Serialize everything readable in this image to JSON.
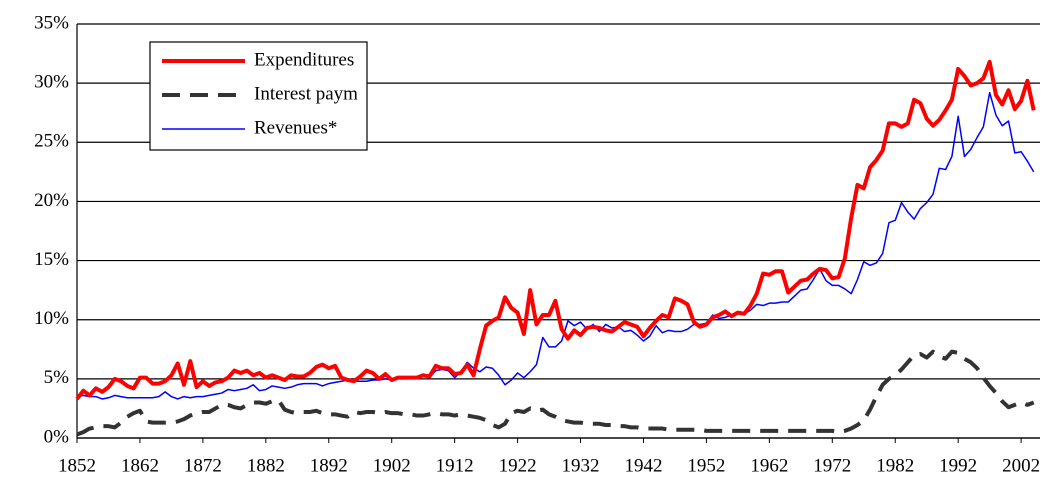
{
  "chart_data": {
    "type": "line",
    "x": [
      1852,
      1853,
      1854,
      1855,
      1856,
      1857,
      1858,
      1859,
      1860,
      1861,
      1862,
      1863,
      1864,
      1865,
      1866,
      1867,
      1868,
      1869,
      1870,
      1871,
      1872,
      1873,
      1874,
      1875,
      1876,
      1877,
      1878,
      1879,
      1880,
      1881,
      1882,
      1883,
      1884,
      1885,
      1886,
      1887,
      1888,
      1889,
      1890,
      1891,
      1892,
      1893,
      1894,
      1895,
      1896,
      1897,
      1898,
      1899,
      1900,
      1901,
      1902,
      1903,
      1904,
      1905,
      1906,
      1907,
      1908,
      1909,
      1910,
      1911,
      1912,
      1913,
      1914,
      1915,
      1916,
      1917,
      1918,
      1919,
      1920,
      1921,
      1922,
      1923,
      1924,
      1925,
      1926,
      1927,
      1928,
      1929,
      1930,
      1931,
      1932,
      1933,
      1934,
      1935,
      1936,
      1937,
      1938,
      1939,
      1940,
      1941,
      1942,
      1943,
      1944,
      1945,
      1946,
      1947,
      1948,
      1949,
      1950,
      1951,
      1952,
      1953,
      1954,
      1955,
      1956,
      1957,
      1958,
      1959,
      1960,
      1961,
      1962,
      1963,
      1964,
      1965,
      1966,
      1967,
      1968,
      1969,
      1970,
      1971,
      1972,
      1973,
      1974,
      1975,
      1976,
      1977,
      1978,
      1979,
      1980,
      1981,
      1982,
      1983,
      1984,
      1985,
      1986,
      1987,
      1988,
      1989,
      1990,
      1991,
      1992,
      1993,
      1994,
      1995,
      1996,
      1997,
      1998,
      1999,
      2000,
      2001,
      2002,
      2003,
      2004
    ],
    "series": [
      {
        "name": "Expenditures",
        "color": "#ff0000",
        "linewidth": 4,
        "linestyle": "solid",
        "values": [
          3.3,
          4.0,
          3.6,
          4.2,
          3.9,
          4.3,
          5.0,
          4.8,
          4.4,
          4.2,
          5.1,
          5.1,
          4.6,
          4.6,
          4.8,
          5.3,
          6.3,
          4.5,
          6.5,
          4.3,
          4.8,
          4.4,
          4.7,
          4.8,
          5.1,
          5.7,
          5.5,
          5.7,
          5.3,
          5.5,
          5.1,
          5.3,
          5.1,
          4.9,
          5.3,
          5.2,
          5.2,
          5.5,
          6.0,
          6.2,
          5.9,
          6.1,
          5.1,
          4.9,
          4.8,
          5.2,
          5.7,
          5.5,
          5.0,
          5.4,
          4.9,
          5.1,
          5.1,
          5.1,
          5.1,
          5.3,
          5.2,
          6.1,
          5.9,
          5.9,
          5.4,
          5.5,
          6.2,
          5.3,
          7.5,
          9.5,
          9.9,
          10.2,
          11.9,
          11.0,
          10.6,
          8.8,
          12.5,
          9.6,
          10.4,
          10.4,
          11.6,
          9.2,
          8.4,
          9.1,
          8.7,
          9.3,
          9.4,
          9.3,
          9.1,
          9.0,
          9.4,
          9.8,
          9.6,
          9.4,
          8.6,
          9.3,
          9.9,
          10.4,
          10.2,
          11.8,
          11.6,
          11.3,
          9.8,
          9.4,
          9.6,
          10.2,
          10.4,
          10.7,
          10.3,
          10.6,
          10.5,
          11.2,
          12.2,
          13.9,
          13.8,
          14.1,
          14.1,
          12.3,
          12.8,
          13.3,
          13.4,
          13.9,
          14.3,
          14.2,
          13.5,
          13.6,
          15.2,
          18.6,
          21.4,
          21.1,
          22.9,
          23.5,
          24.3,
          26.6,
          26.6,
          26.3,
          26.6,
          28.6,
          28.3,
          27.0,
          26.4,
          26.9,
          27.7,
          28.6,
          31.2,
          30.6,
          29.8,
          30.0,
          30.4,
          31.8,
          29.0,
          28.2,
          29.4,
          27.8,
          28.5,
          30.2,
          27.7
        ]
      },
      {
        "name": "Interest paym",
        "color": "#333333",
        "linewidth": 4,
        "linestyle": "dashed",
        "values": [
          0.3,
          0.5,
          0.8,
          0.9,
          1.0,
          1.0,
          0.9,
          1.3,
          1.8,
          2.1,
          2.3,
          1.4,
          1.3,
          1.3,
          1.3,
          1.3,
          1.4,
          1.6,
          1.9,
          2.1,
          2.2,
          2.2,
          2.5,
          2.8,
          2.8,
          2.6,
          2.5,
          2.8,
          3.0,
          3.0,
          2.9,
          3.1,
          3.2,
          2.4,
          2.2,
          2.1,
          2.2,
          2.2,
          2.3,
          2.1,
          2.0,
          2.0,
          1.9,
          1.8,
          2.2,
          2.1,
          2.2,
          2.2,
          2.1,
          2.2,
          2.1,
          2.1,
          2.0,
          2.0,
          1.9,
          1.9,
          2.0,
          2.1,
          2.0,
          2.0,
          1.9,
          2.0,
          1.9,
          1.8,
          1.7,
          1.5,
          1.1,
          0.9,
          1.2,
          2.1,
          2.3,
          2.2,
          2.5,
          2.3,
          2.4,
          2.0,
          1.8,
          1.5,
          1.4,
          1.3,
          1.3,
          1.2,
          1.2,
          1.2,
          1.1,
          1.1,
          1.0,
          1.0,
          0.9,
          0.9,
          0.8,
          0.8,
          0.8,
          0.8,
          0.7,
          0.7,
          0.7,
          0.7,
          0.7,
          0.7,
          0.6,
          0.6,
          0.6,
          0.6,
          0.6,
          0.6,
          0.6,
          0.6,
          0.6,
          0.6,
          0.6,
          0.6,
          0.6,
          0.6,
          0.6,
          0.6,
          0.6,
          0.6,
          0.6,
          0.6,
          0.6,
          0.5,
          0.6,
          0.8,
          1.1,
          1.5,
          2.4,
          3.5,
          4.5,
          5.0,
          5.3,
          5.8,
          6.4,
          7.0,
          7.1,
          6.8,
          7.3,
          6.9,
          6.7,
          7.3,
          7.2,
          6.7,
          6.4,
          5.9,
          5.1,
          4.4,
          3.8,
          3.1,
          2.6,
          2.8,
          3.0,
          2.8,
          3.0
        ]
      },
      {
        "name": "Revenues*",
        "color": "#0000ff",
        "linewidth": 1.5,
        "linestyle": "solid",
        "values": [
          3.5,
          3.6,
          3.5,
          3.5,
          3.3,
          3.4,
          3.6,
          3.5,
          3.4,
          3.4,
          3.4,
          3.4,
          3.4,
          3.5,
          3.9,
          3.5,
          3.3,
          3.5,
          3.4,
          3.5,
          3.5,
          3.6,
          3.7,
          3.8,
          4.1,
          4.0,
          4.1,
          4.2,
          4.5,
          4.0,
          4.1,
          4.4,
          4.3,
          4.2,
          4.3,
          4.5,
          4.6,
          4.6,
          4.6,
          4.4,
          4.6,
          4.7,
          4.8,
          4.9,
          4.8,
          4.8,
          4.8,
          4.9,
          4.9,
          5.0,
          4.9,
          5.0,
          5.0,
          5.1,
          5.1,
          5.3,
          5.1,
          5.7,
          5.8,
          5.7,
          5.1,
          5.6,
          6.4,
          5.9,
          5.6,
          6.0,
          5.9,
          5.3,
          4.5,
          4.9,
          5.5,
          5.1,
          5.6,
          6.2,
          8.5,
          7.7,
          7.7,
          8.2,
          9.9,
          9.5,
          9.8,
          9.2,
          9.6,
          9.0,
          9.6,
          9.3,
          9.4,
          9.0,
          9.1,
          8.7,
          8.2,
          8.6,
          9.5,
          8.9,
          9.1,
          9.0,
          9.0,
          9.2,
          9.6,
          9.6,
          9.7,
          10.4,
          10.1,
          10.2,
          10.4,
          10.6,
          10.5,
          10.8,
          11.3,
          11.2,
          11.4,
          11.4,
          11.5,
          11.5,
          12.0,
          12.5,
          12.6,
          13.4,
          14.3,
          13.3,
          12.9,
          12.9,
          12.6,
          12.2,
          13.4,
          14.9,
          14.6,
          14.8,
          15.6,
          18.2,
          18.4,
          19.9,
          19.1,
          18.5,
          19.4,
          19.9,
          20.6,
          22.8,
          22.7,
          23.8,
          27.2,
          23.8,
          24.4,
          25.4,
          26.3,
          29.2,
          27.3,
          26.4,
          26.8,
          24.1,
          24.2,
          23.4,
          22.5
        ]
      }
    ],
    "xlim": [
      1852,
      2005
    ],
    "xticks": [
      1852,
      1862,
      1872,
      1882,
      1892,
      1902,
      1912,
      1922,
      1932,
      1942,
      1952,
      1962,
      1972,
      1982,
      1992,
      2002
    ],
    "ylim": [
      0,
      35
    ],
    "yticks": [
      {
        "value": 0,
        "label": "0%"
      },
      {
        "value": 5,
        "label": "5%"
      },
      {
        "value": 10,
        "label": "10%"
      },
      {
        "value": 15,
        "label": "15%"
      },
      {
        "value": 20,
        "label": "20%"
      },
      {
        "value": 25,
        "label": "25%"
      },
      {
        "value": 30,
        "label": "30%"
      },
      {
        "value": 35,
        "label": "35%"
      }
    ],
    "grid": true,
    "legend": "upper left"
  }
}
